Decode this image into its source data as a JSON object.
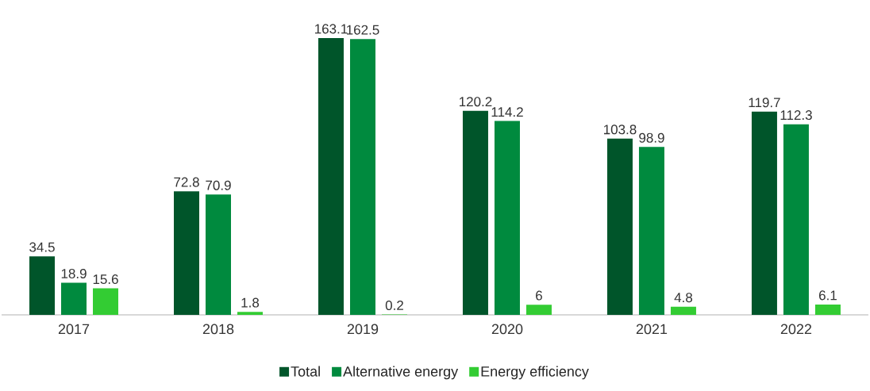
{
  "chart_data": {
    "type": "bar",
    "categories": [
      "2017",
      "2018",
      "2019",
      "2020",
      "2021",
      "2022"
    ],
    "series": [
      {
        "name": "Total",
        "color": "#00552a",
        "values": [
          34.5,
          72.8,
          163.1,
          120.2,
          103.8,
          119.7
        ]
      },
      {
        "name": "Alternative energy",
        "color": "#008a3e",
        "values": [
          18.9,
          70.9,
          162.5,
          114.2,
          98.9,
          112.3
        ]
      },
      {
        "name": "Energy efficiency",
        "color": "#33cc33",
        "values": [
          15.6,
          1.8,
          0.2,
          6,
          4.8,
          6.1
        ]
      }
    ],
    "data_labels": true,
    "legend": "bottom"
  }
}
